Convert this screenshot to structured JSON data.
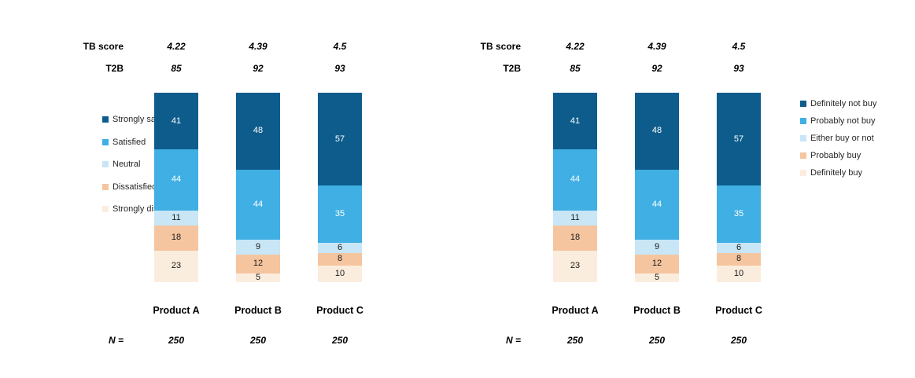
{
  "page": {
    "background": "#ffffff"
  },
  "palette": {
    "dark_blue": "#0E5C8C",
    "medium_blue": "#3FAFE4",
    "pale_blue": "#C8E6F5",
    "peach": "#F5C59F",
    "cream": "#FBEDDD"
  },
  "chart_data": [
    {
      "type": "bar",
      "stacked": true,
      "percent_normalized": true,
      "legend_position": "left",
      "title": "",
      "categories": [
        "Product A",
        "Product B",
        "Product C"
      ],
      "series": [
        {
          "name": "Strongly satisfied",
          "color": "#0E5C8C",
          "values": [
            41,
            48,
            57
          ]
        },
        {
          "name": "Satisfied",
          "color": "#3FAFE4",
          "values": [
            44,
            44,
            35
          ]
        },
        {
          "name": "Neutral",
          "color": "#C8E6F5",
          "values": [
            11,
            9,
            6
          ]
        },
        {
          "name": "Dissatisfied",
          "color": "#F5C59F",
          "values": [
            18,
            12,
            8
          ]
        },
        {
          "name": "Strongly dissatisfied",
          "color": "#FBEDDD",
          "values": [
            23,
            5,
            10
          ]
        }
      ],
      "header_rows": [
        {
          "label": "TB score",
          "values": [
            "4.22",
            "4.39",
            "4.5"
          ]
        },
        {
          "label": "T2B",
          "values": [
            "85",
            "92",
            "93"
          ]
        }
      ],
      "footer": {
        "label": "N =",
        "values": [
          "250",
          "250",
          "250"
        ]
      }
    },
    {
      "type": "bar",
      "stacked": true,
      "percent_normalized": true,
      "legend_position": "right",
      "title": "",
      "categories": [
        "Product A",
        "Product B",
        "Product C"
      ],
      "series": [
        {
          "name": "Definitely not buy",
          "color": "#0E5C8C",
          "values": [
            41,
            48,
            57
          ]
        },
        {
          "name": "Probably not buy",
          "color": "#3FAFE4",
          "values": [
            44,
            44,
            35
          ]
        },
        {
          "name": "Either buy or not",
          "color": "#C8E6F5",
          "values": [
            11,
            9,
            6
          ]
        },
        {
          "name": "Probably buy",
          "color": "#F5C59F",
          "values": [
            18,
            12,
            8
          ]
        },
        {
          "name": "Definitely buy",
          "color": "#FBEDDD",
          "values": [
            23,
            5,
            10
          ]
        }
      ],
      "header_rows": [
        {
          "label": "TB score",
          "values": [
            "4.22",
            "4.39",
            "4.5"
          ]
        },
        {
          "label": "T2B",
          "values": [
            "85",
            "92",
            "93"
          ]
        }
      ],
      "footer": {
        "label": "N =",
        "values": [
          "250",
          "250",
          "250"
        ]
      }
    }
  ]
}
